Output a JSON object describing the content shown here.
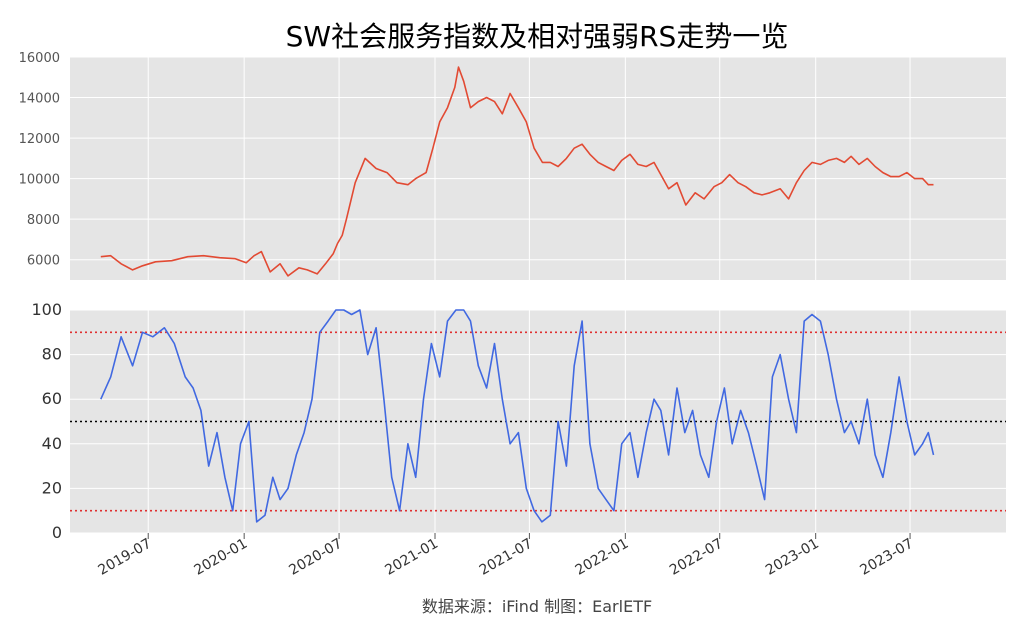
{
  "title": "SW社会服务指数及相对强弱RS走势一览",
  "source": "数据来源：iFind 制图：EarlETF",
  "colors": {
    "background": "#e5e5e5",
    "grid": "#ffffff",
    "index_line": "#e24a33",
    "rs_line": "#4169e1",
    "ref_red": "#e03030",
    "ref_black": "#000000"
  },
  "chart_data": [
    {
      "type": "line",
      "name": "index",
      "ylim": [
        5000,
        16000
      ],
      "yticks": [
        6000,
        8000,
        10000,
        12000,
        14000,
        16000
      ],
      "ytick_labels": [
        "6000",
        "8000",
        "10000",
        "12000",
        "14000",
        "16000"
      ],
      "grid": true,
      "series": [
        {
          "x": [
            "2019-04-01",
            "2019-04-20",
            "2019-05-10",
            "2019-06-01",
            "2019-06-20",
            "2019-07-15",
            "2019-08-15",
            "2019-09-15",
            "2019-10-15",
            "2019-11-15",
            "2019-12-15",
            "2020-01-05",
            "2020-01-20",
            "2020-02-03",
            "2020-02-20",
            "2020-03-10",
            "2020-03-25",
            "2020-04-15",
            "2020-05-01",
            "2020-05-20",
            "2020-06-05",
            "2020-06-20",
            "2020-06-28",
            "2020-07-07",
            "2020-07-15",
            "2020-08-01",
            "2020-08-20",
            "2020-09-10",
            "2020-10-01",
            "2020-10-20",
            "2020-11-10",
            "2020-11-25",
            "2020-12-15",
            "2020-12-28",
            "2021-01-10",
            "2021-01-25",
            "2021-02-08",
            "2021-02-15",
            "2021-02-25",
            "2021-03-10",
            "2021-03-25",
            "2021-04-10",
            "2021-04-25",
            "2021-05-10",
            "2021-05-25",
            "2021-06-10",
            "2021-06-25",
            "2021-07-10",
            "2021-07-26",
            "2021-08-10",
            "2021-08-25",
            "2021-09-10",
            "2021-09-25",
            "2021-10-10",
            "2021-10-25",
            "2021-11-10",
            "2021-11-25",
            "2021-12-10",
            "2021-12-25",
            "2022-01-10",
            "2022-01-25",
            "2022-02-10",
            "2022-02-25",
            "2022-03-10",
            "2022-03-25",
            "2022-04-10",
            "2022-04-27",
            "2022-05-15",
            "2022-06-01",
            "2022-06-20",
            "2022-07-05",
            "2022-07-20",
            "2022-08-05",
            "2022-08-20",
            "2022-09-05",
            "2022-09-20",
            "2022-10-05",
            "2022-10-25",
            "2022-11-10",
            "2022-11-25",
            "2022-12-10",
            "2022-12-25",
            "2023-01-10",
            "2023-01-25",
            "2023-02-10",
            "2023-02-25",
            "2023-03-10",
            "2023-03-25",
            "2023-04-10",
            "2023-04-25",
            "2023-05-10",
            "2023-05-25",
            "2023-06-10",
            "2023-06-25",
            "2023-07-10",
            "2023-07-25",
            "2023-08-05",
            "2023-08-15"
          ],
          "y": [
            6150,
            6200,
            5800,
            5500,
            5700,
            5900,
            5950,
            6150,
            6200,
            6100,
            6050,
            5850,
            6200,
            6400,
            5400,
            5800,
            5200,
            5600,
            5500,
            5300,
            5800,
            6300,
            6800,
            7200,
            8000,
            9800,
            11000,
            10500,
            10300,
            9800,
            9700,
            10000,
            10300,
            11500,
            12800,
            13500,
            14500,
            15500,
            14800,
            13500,
            13800,
            14000,
            13800,
            13200,
            14200,
            13500,
            12800,
            11500,
            10800,
            10800,
            10600,
            11000,
            11500,
            11700,
            11200,
            10800,
            10600,
            10400,
            10900,
            11200,
            10700,
            10600,
            10800,
            10200,
            9500,
            9800,
            8700,
            9300,
            9000,
            9600,
            9800,
            10200,
            9800,
            9600,
            9300,
            9200,
            9300,
            9500,
            9000,
            9800,
            10400,
            10800,
            10700,
            10900,
            11000,
            10800,
            11100,
            10700,
            11000,
            10600,
            10300,
            10100,
            10100,
            10300,
            10000,
            10000,
            9700,
            9700
          ]
        }
      ]
    },
    {
      "type": "line",
      "name": "RS",
      "ylim": [
        0,
        100
      ],
      "yticks": [
        0,
        20,
        40,
        60,
        80,
        100
      ],
      "ytick_labels": [
        "0",
        "20",
        "40",
        "60",
        "80",
        "100"
      ],
      "reference_lines": [
        90,
        50,
        10
      ],
      "grid": true,
      "xticks": [
        "2019-07-01",
        "2020-01-01",
        "2020-07-01",
        "2021-01-01",
        "2021-07-01",
        "2022-01-01",
        "2022-07-01",
        "2023-01-01",
        "2023-07-01"
      ],
      "xtick_labels": [
        "2019-07",
        "2020-01",
        "2020-07",
        "2021-01",
        "2021-07",
        "2022-01",
        "2022-07",
        "2023-01",
        "2023-07"
      ],
      "series": [
        {
          "x": [
            "2019-04-01",
            "2019-04-20",
            "2019-05-10",
            "2019-06-01",
            "2019-06-20",
            "2019-07-10",
            "2019-08-01",
            "2019-08-20",
            "2019-09-10",
            "2019-09-25",
            "2019-10-10",
            "2019-10-25",
            "2019-11-10",
            "2019-11-25",
            "2019-12-10",
            "2019-12-25",
            "2020-01-10",
            "2020-01-25",
            "2020-02-10",
            "2020-02-25",
            "2020-03-10",
            "2020-03-25",
            "2020-04-10",
            "2020-04-25",
            "2020-05-10",
            "2020-05-25",
            "2020-06-10",
            "2020-06-25",
            "2020-07-10",
            "2020-07-25",
            "2020-08-10",
            "2020-08-25",
            "2020-09-10",
            "2020-09-25",
            "2020-10-10",
            "2020-10-25",
            "2020-11-10",
            "2020-11-25",
            "2020-12-10",
            "2020-12-25",
            "2021-01-10",
            "2021-01-25",
            "2021-02-10",
            "2021-02-25",
            "2021-03-10",
            "2021-03-25",
            "2021-04-10",
            "2021-04-25",
            "2021-05-10",
            "2021-05-25",
            "2021-06-10",
            "2021-06-25",
            "2021-07-10",
            "2021-07-25",
            "2021-08-10",
            "2021-08-25",
            "2021-09-10",
            "2021-09-25",
            "2021-10-10",
            "2021-10-25",
            "2021-11-10",
            "2021-11-25",
            "2021-12-10",
            "2021-12-25",
            "2022-01-10",
            "2022-01-25",
            "2022-02-10",
            "2022-02-25",
            "2022-03-10",
            "2022-03-25",
            "2022-04-10",
            "2022-04-25",
            "2022-05-10",
            "2022-05-25",
            "2022-06-10",
            "2022-06-25",
            "2022-07-10",
            "2022-07-25",
            "2022-08-10",
            "2022-08-25",
            "2022-09-10",
            "2022-09-25",
            "2022-10-10",
            "2022-10-25",
            "2022-11-10",
            "2022-11-25",
            "2022-12-10",
            "2022-12-25",
            "2023-01-10",
            "2023-01-25",
            "2023-02-10",
            "2023-02-25",
            "2023-03-10",
            "2023-03-25",
            "2023-04-10",
            "2023-04-25",
            "2023-05-10",
            "2023-05-25",
            "2023-06-10",
            "2023-06-25",
            "2023-07-10",
            "2023-07-25",
            "2023-08-05",
            "2023-08-15"
          ],
          "y": [
            60,
            70,
            88,
            75,
            90,
            88,
            92,
            85,
            70,
            65,
            55,
            30,
            45,
            25,
            10,
            40,
            50,
            5,
            8,
            25,
            15,
            20,
            35,
            45,
            60,
            90,
            95,
            100,
            100,
            98,
            100,
            80,
            92,
            60,
            25,
            10,
            40,
            25,
            60,
            85,
            70,
            95,
            100,
            100,
            95,
            75,
            65,
            85,
            60,
            40,
            45,
            20,
            10,
            5,
            8,
            50,
            30,
            75,
            95,
            40,
            20,
            15,
            10,
            40,
            45,
            25,
            45,
            60,
            55,
            35,
            65,
            45,
            55,
            35,
            25,
            50,
            65,
            40,
            55,
            45,
            30,
            15,
            70,
            80,
            60,
            45,
            95,
            98,
            95,
            80,
            60,
            45,
            50,
            40,
            60,
            35,
            25,
            45,
            70,
            50,
            35,
            40,
            45,
            35
          ]
        }
      ]
    }
  ]
}
